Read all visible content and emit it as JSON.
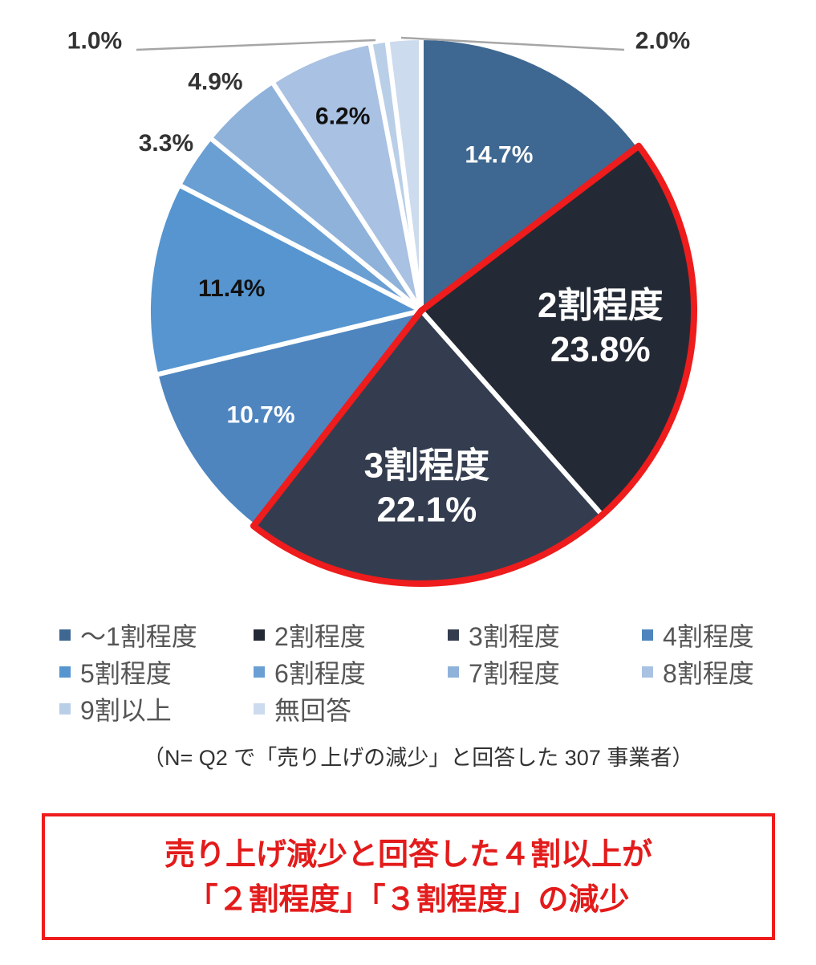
{
  "chart_data": {
    "type": "pie",
    "title": "",
    "start": "12 o'clock, clockwise",
    "slices": [
      {
        "category": "〜1割程度",
        "value": 14.7,
        "label": "14.7%",
        "color": "#3e6891",
        "label_color": "#ffffff"
      },
      {
        "category": "2割程度",
        "value": 23.8,
        "label": "23.8%",
        "label_title": "2割程度",
        "color": "#242a35",
        "label_color": "#ffffff",
        "highlighted": true
      },
      {
        "category": "3割程度",
        "value": 22.1,
        "label": "22.1%",
        "label_title": "3割程度",
        "color": "#343d4f",
        "label_color": "#ffffff",
        "highlighted": true
      },
      {
        "category": "4割程度",
        "value": 10.7,
        "label": "10.7%",
        "color": "#4e85bf",
        "label_color": "#ffffff"
      },
      {
        "category": "5割程度",
        "value": 11.4,
        "label": "11.4%",
        "color": "#5695d0",
        "label_color": "#111111"
      },
      {
        "category": "6割程度",
        "value": 3.3,
        "label": "3.3%",
        "color": "#6a9fd4",
        "label_color": "#333333",
        "outside": true
      },
      {
        "category": "7割程度",
        "value": 4.9,
        "label": "4.9%",
        "color": "#8fb2da",
        "label_color": "#333333",
        "outside": true
      },
      {
        "category": "8割程度",
        "value": 6.2,
        "label": "6.2%",
        "color": "#a9c1e2",
        "label_color": "#111111"
      },
      {
        "category": "9割以上",
        "value": 1.0,
        "label": "1.0%",
        "color": "#b9cfe8",
        "label_color": "#333333",
        "outside": true,
        "leader": true
      },
      {
        "category": "無回答",
        "value": 2.0,
        "label": "2.0%",
        "color": "#cddbee",
        "label_color": "#333333",
        "outside": true,
        "leader": true
      }
    ],
    "legend": {
      "position": "bottom",
      "items": [
        "〜1割程度",
        "2割程度",
        "3割程度",
        "4割程度",
        "5割程度",
        "6割程度",
        "7割程度",
        "8割程度",
        "9割以上",
        "無回答"
      ]
    },
    "highlight_color": "#ee1c1c"
  },
  "note": "（N= Q2 で「売り上げの減少」と回答した 307 事業者）",
  "callout": {
    "line1": "売り上げ減少と回答した４割以上が",
    "line2": "「２割程度」「３割程度」の減少"
  }
}
